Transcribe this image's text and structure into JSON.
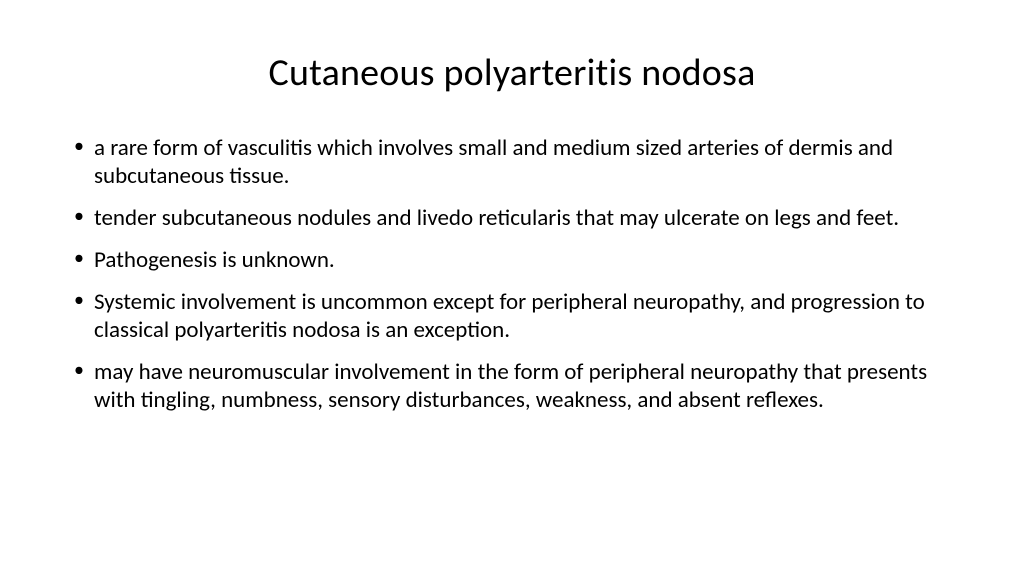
{
  "slide": {
    "title": "Cutaneous polyarteritis nodosa",
    "title_fontsize": 38,
    "title_color": "#000000",
    "title_align": "center",
    "background_color": "#ffffff",
    "text_color": "#000000",
    "body_fontsize": 23,
    "bullets": [
      "a rare form of vasculitis which involves small and medium sized arteries of dermis and subcutaneous tissue.",
      "tender subcutaneous nodules and livedo reticularis that may ulcerate on legs and feet.",
      "Pathogenesis is unknown.",
      "Systemic involvement is uncommon except for peripheral neuropathy, and progression to classical polyarteritis nodosa is an exception.",
      "may have neuromuscular involvement in the form of peripheral neuropathy that presents with tingling, numbness, sensory disturbances, weakness, and absent reflexes."
    ]
  }
}
